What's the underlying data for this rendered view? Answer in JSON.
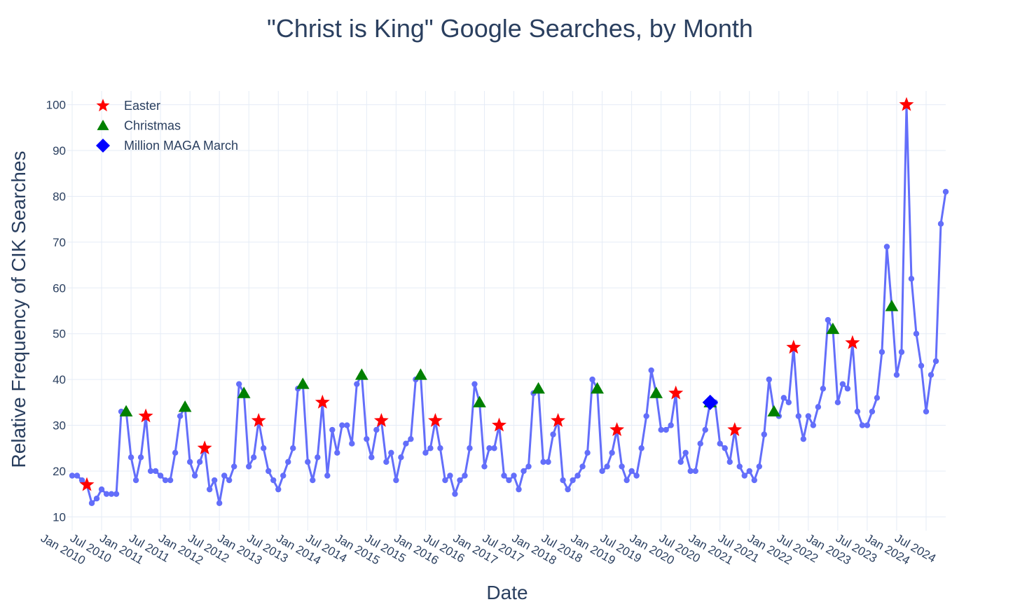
{
  "chart_data": {
    "type": "line",
    "title": "\"Christ is King\" Google Searches, by Month",
    "xlabel": "Date",
    "ylabel": "Relative Frequency of CIK Searches",
    "x_start": "2010-01",
    "y_ticks": [
      10,
      20,
      30,
      40,
      50,
      60,
      70,
      80,
      90,
      100
    ],
    "x_ticks": [
      {
        "date": "2010-01",
        "label": "Jan 2010"
      },
      {
        "date": "2010-07",
        "label": "Jul 2010"
      },
      {
        "date": "2011-01",
        "label": "Jan 2011"
      },
      {
        "date": "2011-07",
        "label": "Jul 2011"
      },
      {
        "date": "2012-01",
        "label": "Jan 2012"
      },
      {
        "date": "2012-07",
        "label": "Jul 2012"
      },
      {
        "date": "2013-01",
        "label": "Jan 2013"
      },
      {
        "date": "2013-07",
        "label": "Jul 2013"
      },
      {
        "date": "2014-01",
        "label": "Jan 2014"
      },
      {
        "date": "2014-07",
        "label": "Jul 2014"
      },
      {
        "date": "2015-01",
        "label": "Jan 2015"
      },
      {
        "date": "2015-07",
        "label": "Jul 2015"
      },
      {
        "date": "2016-01",
        "label": "Jan 2016"
      },
      {
        "date": "2016-07",
        "label": "Jul 2016"
      },
      {
        "date": "2017-01",
        "label": "Jan 2017"
      },
      {
        "date": "2017-07",
        "label": "Jul 2017"
      },
      {
        "date": "2018-01",
        "label": "Jan 2018"
      },
      {
        "date": "2018-07",
        "label": "Jul 2018"
      },
      {
        "date": "2019-01",
        "label": "Jan 2019"
      },
      {
        "date": "2019-07",
        "label": "Jul 2019"
      },
      {
        "date": "2020-01",
        "label": "Jan 2020"
      },
      {
        "date": "2020-07",
        "label": "Jul 2020"
      },
      {
        "date": "2021-01",
        "label": "Jan 2021"
      },
      {
        "date": "2021-07",
        "label": "Jul 2021"
      },
      {
        "date": "2022-01",
        "label": "Jan 2022"
      },
      {
        "date": "2022-07",
        "label": "Jul 2022"
      },
      {
        "date": "2023-01",
        "label": "Jan 2023"
      },
      {
        "date": "2023-07",
        "label": "Jul 2023"
      },
      {
        "date": "2024-01",
        "label": "Jan 2024"
      },
      {
        "date": "2024-07",
        "label": "Jul 2024"
      }
    ],
    "y_range": [
      7,
      103
    ],
    "x_range": [
      "2009-12",
      "2024-11"
    ],
    "grid": true,
    "legend_position": "top-left",
    "line_color": "#636efa",
    "monthly_values": [
      19,
      19,
      18,
      17,
      13,
      14,
      16,
      15,
      15,
      15,
      33,
      33,
      23,
      18,
      23,
      32,
      20,
      20,
      19,
      18,
      18,
      24,
      32,
      34,
      22,
      19,
      22,
      25,
      16,
      18,
      13,
      19,
      18,
      21,
      39,
      37,
      21,
      23,
      31,
      25,
      20,
      18,
      16,
      19,
      22,
      25,
      38,
      39,
      22,
      18,
      23,
      35,
      19,
      29,
      24,
      30,
      30,
      26,
      39,
      41,
      27,
      23,
      29,
      31,
      22,
      24,
      18,
      23,
      26,
      27,
      40,
      41,
      24,
      25,
      31,
      25,
      18,
      19,
      15,
      18,
      19,
      25,
      39,
      35,
      21,
      25,
      25,
      30,
      19,
      18,
      19,
      16,
      20,
      21,
      37,
      38,
      22,
      22,
      28,
      31,
      18,
      16,
      18,
      19,
      21,
      24,
      40,
      38,
      20,
      21,
      24,
      29,
      21,
      18,
      20,
      19,
      25,
      32,
      42,
      37,
      29,
      29,
      30,
      37,
      22,
      24,
      20,
      20,
      26,
      29,
      35,
      35,
      26,
      25,
      22,
      29,
      21,
      19,
      20,
      18,
      21,
      28,
      40,
      33,
      32,
      36,
      35,
      47,
      32,
      27,
      32,
      30,
      34,
      38,
      53,
      51,
      35,
      39,
      38,
      48,
      33,
      30,
      30,
      33,
      36,
      46,
      69,
      56,
      41,
      46,
      100,
      62,
      50,
      43,
      33,
      41,
      44,
      74,
      81
    ],
    "series": [
      {
        "name": "Easter",
        "symbol": "star",
        "color": "#ff0000",
        "points": [
          [
            "2010-04",
            17
          ],
          [
            "2011-04",
            32
          ],
          [
            "2012-04",
            25
          ],
          [
            "2013-03",
            31
          ],
          [
            "2014-04",
            35
          ],
          [
            "2015-04",
            31
          ],
          [
            "2016-03",
            31
          ],
          [
            "2017-04",
            30
          ],
          [
            "2018-04",
            31
          ],
          [
            "2019-04",
            29
          ],
          [
            "2020-04",
            37
          ],
          [
            "2021-04",
            29
          ],
          [
            "2022-04",
            47
          ],
          [
            "2023-04",
            48
          ],
          [
            "2024-03",
            100
          ]
        ]
      },
      {
        "name": "Christmas",
        "symbol": "triangle-up",
        "color": "#008000",
        "points": [
          [
            "2010-12",
            33
          ],
          [
            "2011-12",
            34
          ],
          [
            "2012-12",
            37
          ],
          [
            "2013-12",
            39
          ],
          [
            "2014-12",
            41
          ],
          [
            "2015-12",
            41
          ],
          [
            "2016-12",
            35
          ],
          [
            "2017-12",
            38
          ],
          [
            "2018-12",
            38
          ],
          [
            "2019-12",
            37
          ],
          [
            "2020-11",
            35
          ],
          [
            "2021-12",
            33
          ],
          [
            "2022-12",
            51
          ],
          [
            "2023-12",
            56
          ]
        ]
      },
      {
        "name": "Million MAGA March",
        "symbol": "diamond",
        "color": "#0000ff",
        "points": [
          [
            "2020-11",
            35
          ]
        ]
      }
    ]
  }
}
